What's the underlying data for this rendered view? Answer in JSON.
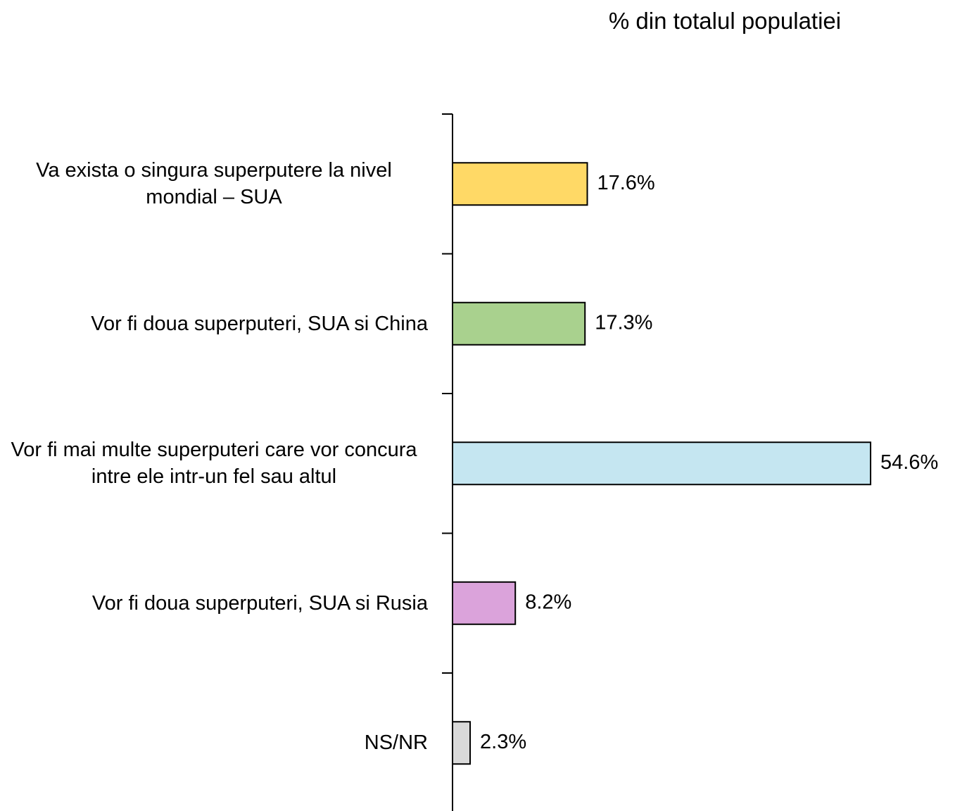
{
  "chart_data": {
    "type": "barh",
    "title": "% din totalul populatiei",
    "categories": [
      "Va exista o singura superputere la nivel mondial – SUA",
      "Vor fi doua superputeri, SUA si China",
      "Vor fi mai multe superputeri care vor concura intre ele intr-un fel sau altul",
      "Vor fi doua superputeri, SUA si Rusia",
      "NS/NR"
    ],
    "values": [
      17.6,
      17.3,
      54.6,
      8.2,
      2.3
    ],
    "value_labels": [
      "17.6%",
      "17.3%",
      "54.6%",
      "8.2%",
      "2.3%"
    ],
    "colors": [
      "#ffd966",
      "#a9d18e",
      "#c5e6f1",
      "#dba3db",
      "#d9d9d9"
    ]
  }
}
